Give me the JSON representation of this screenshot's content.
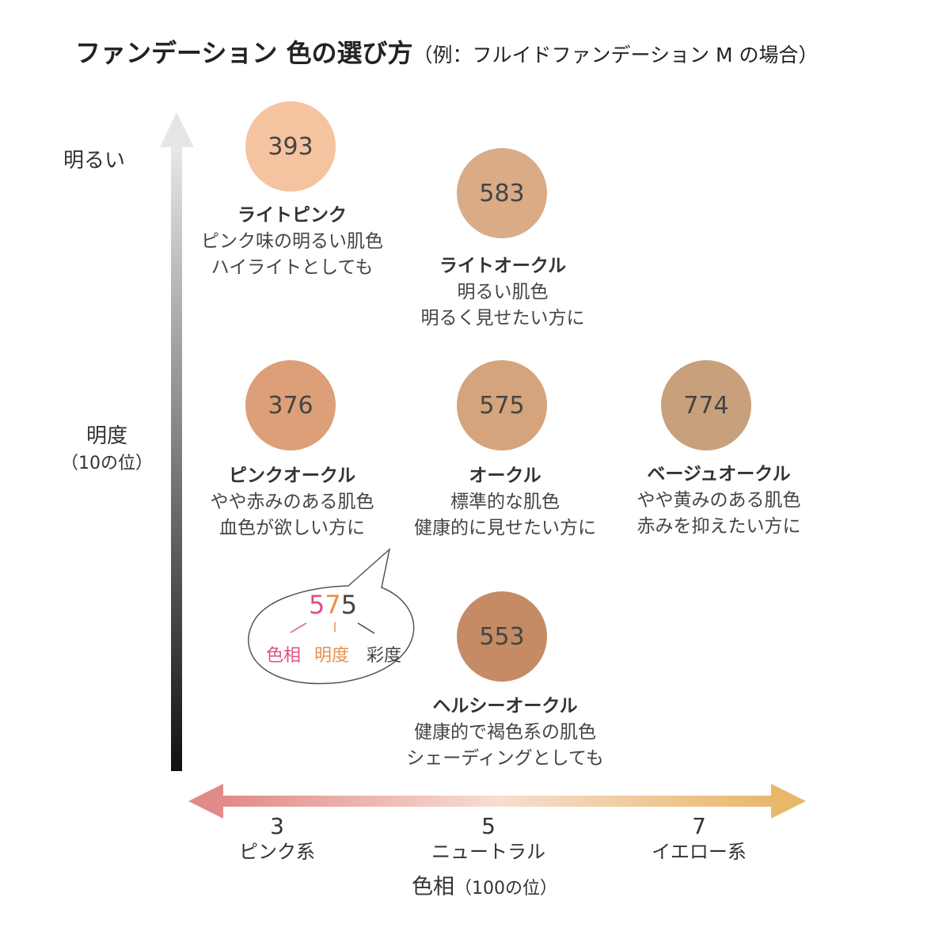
{
  "title": {
    "main": "ファンデーション 色の選び方",
    "sub": "（例：フルイドファンデーション M の場合）"
  },
  "y_axis": {
    "top_label": "明るい",
    "label": "明度",
    "sub": "（10の位）"
  },
  "x_axis": {
    "label": "色相",
    "sub": "（100の位）",
    "ticks": [
      {
        "value": "3",
        "name": "ピンク系"
      },
      {
        "value": "5",
        "name": "ニュートラル"
      },
      {
        "value": "7",
        "name": "イエロー系"
      }
    ],
    "left_color": "#e08a8a",
    "right_color": "#e8b86a"
  },
  "shades": [
    {
      "code": "393",
      "name": "ライトピンク",
      "desc1": "ピンク味の明るい肌色",
      "desc2": "ハイライトとしても",
      "color": "#f5c3a0"
    },
    {
      "code": "583",
      "name": "ライトオークル",
      "desc1": "明るい肌色",
      "desc2": "明るく見せたい方に",
      "color": "#d9ab86"
    },
    {
      "code": "376",
      "name": "ピンクオークル",
      "desc1": "やや赤みのある肌色",
      "desc2": "血色が欲しい方に",
      "color": "#dc9f78"
    },
    {
      "code": "575",
      "name": "オークル",
      "desc1": "標準的な肌色",
      "desc2": "健康的に見せたい方に",
      "color": "#d5a47c"
    },
    {
      "code": "774",
      "name": "ベージュオークル",
      "desc1": "やや黄みのある肌色",
      "desc2": "赤みを抑えたい方に",
      "color": "#c9a07c"
    },
    {
      "code": "553",
      "name": "ヘルシーオークル",
      "desc1": "健康的で褐色系の肌色",
      "desc2": "シェーディングとしても",
      "color": "#c58b65"
    }
  ],
  "bubble": {
    "d1": "5",
    "d2": "7",
    "d3": "5",
    "l1": "色相",
    "l2": "明度",
    "l3": "彩度",
    "c1": "#e0508a",
    "c2": "#e8904a",
    "c3": "#444444"
  }
}
